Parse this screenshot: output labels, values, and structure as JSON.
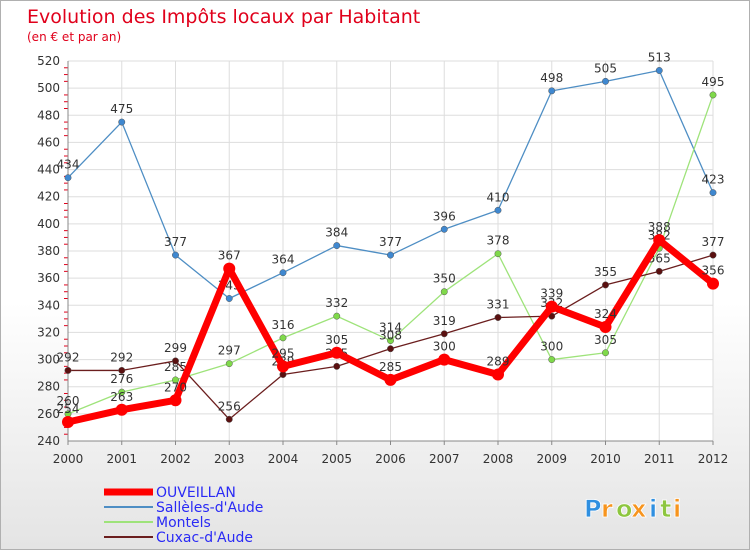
{
  "chart_data": {
    "type": "line",
    "title": "Evolution des Impôts locaux par Habitant",
    "subtitle": "(en € et par an)",
    "xlabel": "",
    "ylabel": "",
    "ylim": [
      240,
      520
    ],
    "yticks": [
      240,
      260,
      280,
      300,
      320,
      340,
      360,
      380,
      400,
      420,
      440,
      460,
      480,
      500,
      520
    ],
    "categories": [
      "2000",
      "2001",
      "2002",
      "2003",
      "2004",
      "2005",
      "2006",
      "2007",
      "2008",
      "2009",
      "2010",
      "2011",
      "2012"
    ],
    "grid": true,
    "legend_position": "bottom-left",
    "series": [
      {
        "name": "Sallèles-d'Aude",
        "color": "#4e8ec4",
        "marker": "#3f88d0",
        "values": [
          434,
          475,
          377,
          345,
          364,
          384,
          377,
          396,
          410,
          498,
          505,
          513,
          423
        ]
      },
      {
        "name": "Montels",
        "color": "#9ee37a",
        "marker": "#7fd94a",
        "values": [
          260,
          276,
          285,
          297,
          316,
          332,
          314,
          350,
          378,
          300,
          305,
          382,
          495
        ]
      },
      {
        "name": "Cuxac-d'Aude",
        "color": "#6b1e1e",
        "marker": "#5a1010",
        "values": [
          292,
          292,
          299,
          256,
          289,
          295,
          308,
          319,
          331,
          332,
          355,
          365,
          377
        ]
      },
      {
        "name": "OUVEILLAN",
        "color": "#ff0000",
        "marker": "#ff0000",
        "values": [
          254,
          263,
          270,
          367,
          295,
          305,
          285,
          300,
          289,
          339,
          324,
          388,
          356
        ]
      }
    ],
    "legend_order": [
      "OUVEILLAN",
      "Sallèles-d'Aude",
      "Montels",
      "Cuxac-d'Aude"
    ]
  },
  "brand": {
    "letters": [
      "P",
      "r",
      "o",
      "x",
      "i",
      "t",
      "i"
    ],
    "colors": [
      "#2f8fe0",
      "#f7941d",
      "#8dc63f",
      "#f7941d",
      "#2f8fe0",
      "#8dc63f",
      "#f7941d"
    ]
  }
}
